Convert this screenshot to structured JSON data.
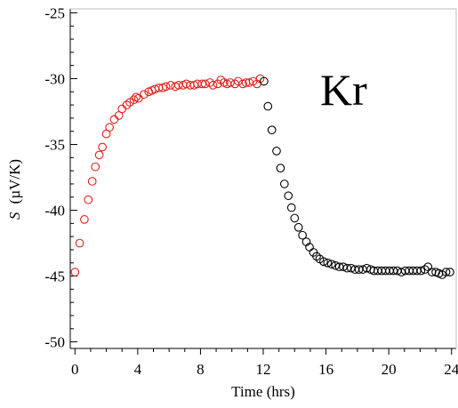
{
  "chart_data": {
    "type": "scatter",
    "title": "",
    "xlabel": "Time (hrs)",
    "ylabel_symbol": "S",
    "ylabel_units": "(µV/K)",
    "xlim": [
      -0.3,
      24.3
    ],
    "ylim": [
      -50.5,
      -24.7
    ],
    "xticks": [
      0,
      4,
      8,
      12,
      16,
      20,
      24
    ],
    "xtick_labels": [
      "0",
      "4",
      "8",
      "12",
      "16",
      "20",
      "24"
    ],
    "yticks": [
      -25,
      -30,
      -35,
      -40,
      -45,
      -50
    ],
    "ytick_labels": [
      "-25",
      "-30",
      "-35",
      "-40",
      "-45",
      "-50"
    ],
    "grid": false,
    "legend": "none",
    "annotation": "Kr",
    "series": [
      {
        "color": "#e0201b",
        "marker": "open-circle",
        "x": [
          0.0,
          0.3,
          0.6,
          0.85,
          1.1,
          1.3,
          1.55,
          1.75,
          2.0,
          2.2,
          2.5,
          2.8,
          3.0,
          3.3,
          3.5,
          3.75,
          3.9,
          4.05,
          4.4,
          4.7,
          4.9,
          5.1,
          5.35,
          5.6,
          5.8,
          6.1,
          6.4,
          6.6,
          6.9,
          7.1,
          7.35,
          7.6,
          7.8,
          8.1,
          8.3,
          8.6,
          8.8,
          9.1,
          9.3,
          9.5,
          9.7,
          9.9,
          10.2,
          10.4,
          10.7,
          10.9,
          11.1,
          11.35,
          11.6,
          11.8
        ],
        "y": [
          -44.7,
          -42.5,
          -40.7,
          -39.2,
          -37.8,
          -36.7,
          -35.8,
          -35.2,
          -34.2,
          -33.7,
          -33.1,
          -32.8,
          -32.3,
          -32.0,
          -31.8,
          -31.6,
          -31.4,
          -31.5,
          -31.2,
          -31.0,
          -30.9,
          -30.8,
          -30.7,
          -30.7,
          -30.6,
          -30.5,
          -30.6,
          -30.5,
          -30.5,
          -30.4,
          -30.5,
          -30.5,
          -30.4,
          -30.4,
          -30.4,
          -30.3,
          -30.5,
          -30.4,
          -30.1,
          -30.3,
          -30.4,
          -30.3,
          -30.4,
          -30.2,
          -30.4,
          -30.3,
          -30.3,
          -30.2,
          -30.4,
          -30.0
        ]
      },
      {
        "color": "#000000",
        "marker": "open-circle",
        "x": [
          12.05,
          12.3,
          12.55,
          12.85,
          13.1,
          13.35,
          13.6,
          13.8,
          14.0,
          14.25,
          14.5,
          14.75,
          14.95,
          15.2,
          15.4,
          15.6,
          15.85,
          16.1,
          16.35,
          16.6,
          16.85,
          17.1,
          17.35,
          17.6,
          17.85,
          18.1,
          18.35,
          18.6,
          18.85,
          19.05,
          19.3,
          19.55,
          19.8,
          20.05,
          20.3,
          20.55,
          20.8,
          21.05,
          21.3,
          21.55,
          21.8,
          22.05,
          22.3,
          22.5,
          22.75,
          23.0,
          23.2,
          23.4,
          23.65,
          23.9
        ],
        "y": [
          -30.2,
          -32.1,
          -33.9,
          -35.5,
          -36.8,
          -38.0,
          -38.9,
          -39.8,
          -40.6,
          -41.3,
          -41.9,
          -42.4,
          -42.8,
          -43.2,
          -43.5,
          -43.7,
          -43.9,
          -44.0,
          -44.1,
          -44.2,
          -44.3,
          -44.3,
          -44.4,
          -44.4,
          -44.5,
          -44.5,
          -44.5,
          -44.4,
          -44.5,
          -44.6,
          -44.6,
          -44.6,
          -44.6,
          -44.6,
          -44.6,
          -44.6,
          -44.7,
          -44.6,
          -44.6,
          -44.6,
          -44.6,
          -44.6,
          -44.5,
          -44.3,
          -44.7,
          -44.7,
          -44.8,
          -44.9,
          -44.7,
          -44.7
        ]
      }
    ]
  }
}
